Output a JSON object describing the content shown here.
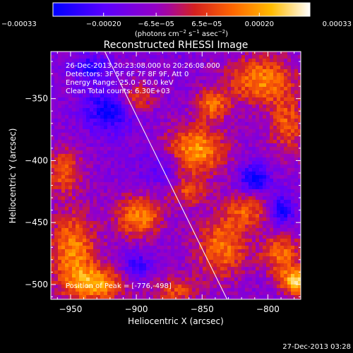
{
  "chart_data": {
    "type": "heatmap",
    "title": "Reconstructed RHESSI Image",
    "xlabel": "Heliocentric X (arcsec)",
    "ylabel": "Heliocentric Y (arcsec)",
    "xlim": [
      -965,
      -775
    ],
    "ylim": [
      -512,
      -312
    ],
    "x_ticks": [
      -950,
      -900,
      -850,
      -800
    ],
    "y_ticks": [
      -350,
      -400,
      -450,
      -500
    ],
    "x_tick_labels": [
      "−950",
      "−900",
      "−850",
      "−800"
    ],
    "y_tick_labels": [
      "−350",
      "−400",
      "−450",
      "−500"
    ],
    "colorbar": {
      "range": [
        -0.00033,
        0.00033
      ],
      "ticks": [
        -0.00033,
        -0.0002,
        -6.5e-05,
        6.5e-05,
        0.0002,
        0.00033
      ],
      "tick_labels": [
        "−0.00033",
        "−0.00020",
        "−6.5e−05",
        "6.5e−05",
        "0.00020",
        "0.00033"
      ],
      "unit_parts": [
        "(photons cm",
        "−2",
        " s",
        "−1",
        " asec",
        "−2",
        ")"
      ],
      "colors": [
        "#0000ff",
        "#5b00ff",
        "#9a00c0",
        "#d42020",
        "#ff6600",
        "#ffbb00",
        "#ffffff"
      ]
    },
    "annotations": [
      "26-Dec-2013 20:23:08.000 to 20:26:08.000",
      "Detectors: 3F 5F 6F 7F 8F 9F, Att 0",
      "Energy Range: 25.0 - 50.0 keV",
      "Clean    Total counts: 6.30E+03"
    ],
    "peak_label": "Position of Peak = [-776,-498]",
    "peak": [
      -776,
      -498
    ],
    "limb_line": [
      [
        -924,
        -312
      ],
      [
        -831,
        -512
      ]
    ],
    "sources": [
      {
        "x": -855,
        "y": -392,
        "sx": 16,
        "sy": 14,
        "amp": 0.0003
      },
      {
        "x": -842,
        "y": -355,
        "sx": 9,
        "sy": 9,
        "amp": 0.00022
      },
      {
        "x": -805,
        "y": -335,
        "sx": 18,
        "sy": 14,
        "amp": 0.00026
      },
      {
        "x": -785,
        "y": -372,
        "sx": 10,
        "sy": 16,
        "amp": 0.0002
      },
      {
        "x": -900,
        "y": -350,
        "sx": 9,
        "sy": 9,
        "amp": 0.00021
      },
      {
        "x": -898,
        "y": -445,
        "sx": 13,
        "sy": 12,
        "amp": 0.00026
      },
      {
        "x": -955,
        "y": -408,
        "sx": 10,
        "sy": 13,
        "amp": 0.00021
      },
      {
        "x": -948,
        "y": -472,
        "sx": 13,
        "sy": 22,
        "amp": 0.00026
      },
      {
        "x": -930,
        "y": -500,
        "sx": 16,
        "sy": 10,
        "amp": 0.00028
      },
      {
        "x": -835,
        "y": -470,
        "sx": 14,
        "sy": 18,
        "amp": 0.00024
      },
      {
        "x": -815,
        "y": -440,
        "sx": 12,
        "sy": 10,
        "amp": 0.00019
      },
      {
        "x": -790,
        "y": -475,
        "sx": 11,
        "sy": 12,
        "amp": 0.00022
      },
      {
        "x": -778,
        "y": -498,
        "sx": 9,
        "sy": 8,
        "amp": 0.00033
      },
      {
        "x": -870,
        "y": -505,
        "sx": 12,
        "sy": 8,
        "amp": 0.00018
      },
      {
        "x": -860,
        "y": -425,
        "sx": 10,
        "sy": 8,
        "amp": 0.00017
      }
    ],
    "negative_regions": [
      {
        "x": -920,
        "y": -360,
        "sx": 14,
        "sy": 12,
        "amp": -0.00022
      },
      {
        "x": -810,
        "y": -415,
        "sx": 8,
        "sy": 8,
        "amp": -0.00024
      },
      {
        "x": -790,
        "y": -440,
        "sx": 7,
        "sy": 9,
        "amp": -0.00022
      },
      {
        "x": -935,
        "y": -325,
        "sx": 10,
        "sy": 7,
        "amp": -0.00018
      },
      {
        "x": -880,
        "y": -405,
        "sx": 12,
        "sy": 10,
        "amp": -0.00012
      },
      {
        "x": -900,
        "y": -485,
        "sx": 8,
        "sy": 8,
        "amp": -0.00015
      }
    ]
  },
  "footer": {
    "date": "27-Dec-2013 03:28"
  }
}
